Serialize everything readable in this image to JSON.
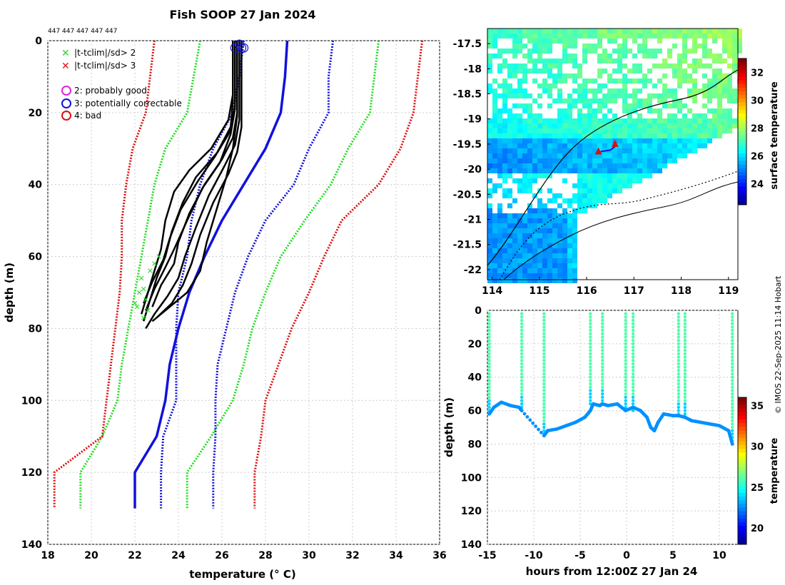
{
  "title": "Fish SOOP 27 Jan 2024",
  "id_labels": "447 447 447 447 447",
  "credit": "© IMOS 22-Sep-2025 11:14 Hobart",
  "colors": {
    "green": "#22dd22",
    "red": "#dd1111",
    "blue": "#1111dd",
    "magenta": "#dd22dd",
    "black": "#000000"
  },
  "chart_data": [
    {
      "type": "line",
      "title": "Fish SOOP 27 Jan 2024",
      "xlabel": "temperature (° C)",
      "ylabel": "depth (m)",
      "xlim": [
        18,
        36
      ],
      "ylim": [
        140,
        0
      ],
      "xticks": [
        "18",
        "20",
        "22",
        "24",
        "26",
        "28",
        "30",
        "32",
        "34",
        "36"
      ],
      "yticks": [
        "0",
        "20",
        "40",
        "60",
        "80",
        "100",
        "120",
        "140"
      ],
      "legend": [
        {
          "marker": "x",
          "color": "#22dd22",
          "label": "|t-tclim|/sd> 2"
        },
        {
          "marker": "x",
          "color": "#dd1111",
          "label": "|t-tclim|/sd> 3"
        },
        {
          "marker": "o",
          "color": "#dd22dd",
          "label": "2: probably good"
        },
        {
          "marker": "o",
          "color": "#1111dd",
          "label": "3: potentially correctable"
        },
        {
          "marker": "o",
          "color": "#dd1111",
          "label": "4: bad"
        }
      ],
      "climatology": [
        {
          "name": "mean",
          "color": "#1111dd",
          "dash": false,
          "points": [
            [
              29.0,
              0
            ],
            [
              28.9,
              10
            ],
            [
              28.7,
              20
            ],
            [
              28.0,
              30
            ],
            [
              27.0,
              40
            ],
            [
              26.0,
              50
            ],
            [
              25.2,
              60
            ],
            [
              24.5,
              70
            ],
            [
              24.0,
              80
            ],
            [
              23.6,
              90
            ],
            [
              23.4,
              100
            ],
            [
              23.0,
              110
            ],
            [
              22.0,
              120
            ],
            [
              22.0,
              130
            ]
          ]
        },
        {
          "name": "mean-1sd",
          "color": "#1111dd",
          "dash": true,
          "points": [
            [
              27.0,
              0
            ],
            [
              26.8,
              10
            ],
            [
              26.5,
              20
            ],
            [
              25.6,
              30
            ],
            [
              25.0,
              40
            ],
            [
              24.6,
              50
            ],
            [
              24.4,
              60
            ],
            [
              24.0,
              70
            ],
            [
              23.9,
              80
            ],
            [
              23.9,
              90
            ],
            [
              23.9,
              100
            ],
            [
              23.3,
              110
            ],
            [
              23.2,
              120
            ],
            [
              23.2,
              130
            ]
          ]
        },
        {
          "name": "mean+1sd",
          "color": "#1111dd",
          "dash": true,
          "points": [
            [
              31.1,
              0
            ],
            [
              30.9,
              10
            ],
            [
              30.9,
              20
            ],
            [
              30.0,
              30
            ],
            [
              29.3,
              40
            ],
            [
              28.0,
              50
            ],
            [
              27.2,
              60
            ],
            [
              26.6,
              70
            ],
            [
              26.2,
              80
            ],
            [
              25.8,
              90
            ],
            [
              25.7,
              100
            ],
            [
              25.7,
              110
            ],
            [
              25.6,
              120
            ],
            [
              25.6,
              130
            ]
          ]
        },
        {
          "name": "mean-2sd",
          "color": "#22dd22",
          "dash": true,
          "points": [
            [
              25.0,
              0
            ],
            [
              24.7,
              10
            ],
            [
              24.4,
              20
            ],
            [
              23.4,
              30
            ],
            [
              22.9,
              40
            ],
            [
              22.6,
              50
            ],
            [
              22.3,
              60
            ],
            [
              22.0,
              70
            ],
            [
              21.7,
              80
            ],
            [
              21.4,
              90
            ],
            [
              21.2,
              100
            ],
            [
              20.5,
              110
            ],
            [
              19.5,
              120
            ],
            [
              19.5,
              130
            ]
          ]
        },
        {
          "name": "mean+2sd",
          "color": "#22dd22",
          "dash": true,
          "points": [
            [
              33.2,
              0
            ],
            [
              33.0,
              10
            ],
            [
              32.8,
              20
            ],
            [
              31.8,
              30
            ],
            [
              31.0,
              40
            ],
            [
              29.8,
              50
            ],
            [
              28.7,
              60
            ],
            [
              28.0,
              70
            ],
            [
              27.4,
              80
            ],
            [
              27.0,
              90
            ],
            [
              26.5,
              100
            ],
            [
              25.5,
              110
            ],
            [
              24.4,
              120
            ],
            [
              24.4,
              130
            ]
          ]
        },
        {
          "name": "mean-3sd",
          "color": "#dd1111",
          "dash": true,
          "points": [
            [
              22.9,
              0
            ],
            [
              22.7,
              10
            ],
            [
              22.5,
              20
            ],
            [
              21.9,
              30
            ],
            [
              21.6,
              40
            ],
            [
              21.4,
              50
            ],
            [
              21.4,
              60
            ],
            [
              21.3,
              70
            ],
            [
              21.1,
              80
            ],
            [
              20.9,
              90
            ],
            [
              20.7,
              100
            ],
            [
              20.5,
              110
            ],
            [
              18.3,
              120
            ],
            [
              18.3,
              130
            ]
          ]
        },
        {
          "name": "mean+3sd",
          "color": "#dd1111",
          "dash": true,
          "points": [
            [
              35.2,
              0
            ],
            [
              35.0,
              10
            ],
            [
              34.8,
              20
            ],
            [
              34.2,
              30
            ],
            [
              33.2,
              40
            ],
            [
              31.5,
              50
            ],
            [
              30.7,
              60
            ],
            [
              30.0,
              70
            ],
            [
              29.2,
              80
            ],
            [
              28.6,
              90
            ],
            [
              28.0,
              100
            ],
            [
              27.8,
              110
            ],
            [
              27.5,
              120
            ],
            [
              27.5,
              130
            ]
          ]
        }
      ],
      "profiles": [
        [
          [
            26.5,
            0
          ],
          [
            26.5,
            15
          ],
          [
            26.3,
            22
          ],
          [
            25.5,
            30
          ],
          [
            24.5,
            36
          ],
          [
            23.8,
            42
          ],
          [
            23.4,
            50
          ],
          [
            23.2,
            58
          ],
          [
            22.9,
            64
          ],
          [
            22.6,
            70
          ],
          [
            22.3,
            76
          ]
        ],
        [
          [
            26.6,
            0
          ],
          [
            26.6,
            18
          ],
          [
            26.4,
            25
          ],
          [
            25.8,
            31
          ],
          [
            24.8,
            38
          ],
          [
            24.2,
            45
          ],
          [
            23.7,
            53
          ],
          [
            23.4,
            60
          ],
          [
            23.0,
            66
          ],
          [
            22.6,
            74
          ],
          [
            22.4,
            78
          ]
        ],
        [
          [
            26.7,
            0
          ],
          [
            26.7,
            20
          ],
          [
            26.5,
            27
          ],
          [
            26.0,
            33
          ],
          [
            25.2,
            40
          ],
          [
            24.5,
            48
          ],
          [
            24.0,
            56
          ],
          [
            23.8,
            62
          ],
          [
            23.2,
            68
          ],
          [
            22.8,
            74
          ]
        ],
        [
          [
            26.8,
            0
          ],
          [
            26.8,
            22
          ],
          [
            26.6,
            29
          ],
          [
            26.1,
            35
          ],
          [
            25.4,
            43
          ],
          [
            24.8,
            52
          ],
          [
            24.3,
            60
          ],
          [
            24.0,
            66
          ],
          [
            23.5,
            71
          ],
          [
            22.9,
            76
          ],
          [
            22.5,
            80
          ]
        ],
        [
          [
            26.9,
            0
          ],
          [
            26.9,
            24
          ],
          [
            26.7,
            31
          ],
          [
            26.3,
            37
          ],
          [
            25.6,
            45
          ],
          [
            25.0,
            54
          ],
          [
            24.6,
            62
          ],
          [
            24.2,
            68
          ],
          [
            23.7,
            73
          ],
          [
            23.0,
            77
          ]
        ],
        [
          [
            26.7,
            0
          ],
          [
            26.7,
            21
          ],
          [
            26.5,
            30
          ],
          [
            26.2,
            38
          ],
          [
            25.8,
            46
          ],
          [
            25.3,
            56
          ],
          [
            25.0,
            64
          ],
          [
            24.4,
            70
          ],
          [
            23.6,
            74
          ],
          [
            22.8,
            78
          ]
        ],
        [
          [
            26.6,
            0
          ],
          [
            26.6,
            19
          ],
          [
            26.4,
            26
          ],
          [
            25.9,
            34
          ],
          [
            25.1,
            41
          ],
          [
            24.4,
            50
          ],
          [
            23.8,
            58
          ],
          [
            23.4,
            63
          ],
          [
            22.9,
            69
          ],
          [
            22.5,
            75
          ]
        ],
        [
          [
            26.5,
            0
          ],
          [
            26.5,
            17
          ],
          [
            26.4,
            24
          ],
          [
            25.7,
            32
          ],
          [
            24.9,
            39
          ],
          [
            24.1,
            47
          ],
          [
            23.6,
            55
          ],
          [
            23.3,
            61
          ],
          [
            22.8,
            67
          ],
          [
            22.4,
            73
          ]
        ]
      ],
      "flag_markers": [
        [
          22.3,
          66
        ],
        [
          22.2,
          70
        ],
        [
          22.5,
          72
        ],
        [
          22.1,
          74
        ],
        [
          22.6,
          75
        ],
        [
          22.4,
          77
        ],
        [
          22.9,
          62
        ],
        [
          23.1,
          60
        ],
        [
          22.7,
          64
        ],
        [
          22.4,
          69
        ],
        [
          22.0,
          73
        ]
      ],
      "surface_circles": [
        [
          26.6,
          2
        ],
        [
          26.8,
          1
        ],
        [
          26.9,
          2
        ],
        [
          27.0,
          2
        ]
      ]
    },
    {
      "type": "heatmap",
      "subtype": "map",
      "xticks": [
        "114",
        "115",
        "116",
        "117",
        "118",
        "119"
      ],
      "yticks": [
        "-17.5",
        "-18",
        "-18.5",
        "-19",
        "-19.5",
        "-20",
        "-20.5",
        "-21",
        "-21.5",
        "-22"
      ],
      "xlim": [
        113.9,
        119.2
      ],
      "ylim": [
        -22.2,
        -17.2
      ],
      "colorbar_label": "surface temperature",
      "colorbar_ticks": [
        "24",
        "26",
        "28",
        "30",
        "32"
      ],
      "colorbar_range": [
        22.5,
        33
      ],
      "track": [
        [
          116.3,
          -19.65
        ],
        [
          116.5,
          -19.62
        ],
        [
          116.6,
          -19.55
        ]
      ],
      "markers": [
        {
          "lon": 116.25,
          "lat": -19.65,
          "color": "#dd1111"
        },
        {
          "lon": 116.6,
          "lat": -19.5,
          "color": "#dd1111"
        }
      ]
    },
    {
      "type": "scatter",
      "xlabel": "hours from 12:00Z 27 Jan 24",
      "ylabel": "depth (m)",
      "xlim": [
        -15,
        12
      ],
      "ylim": [
        140,
        0
      ],
      "xticks": [
        "-15",
        "-10",
        "-5",
        "0",
        "5",
        "10"
      ],
      "yticks": [
        "0",
        "20",
        "40",
        "60",
        "80",
        "100",
        "120",
        "140"
      ],
      "colorbar_label": "temperature",
      "colorbar_ticks": [
        "20",
        "25",
        "30",
        "35"
      ],
      "colorbar_range": [
        18,
        36
      ],
      "casts": [
        {
          "hour": -14.8,
          "bottom": 62
        },
        {
          "hour": -11.3,
          "bottom": 60
        },
        {
          "hour": -8.9,
          "bottom": 75
        },
        {
          "hour": -3.9,
          "bottom": 56
        },
        {
          "hour": -2.6,
          "bottom": 56
        },
        {
          "hour": -0.1,
          "bottom": 60
        },
        {
          "hour": 0.7,
          "bottom": 60
        },
        {
          "hour": 5.6,
          "bottom": 63
        },
        {
          "hour": 6.3,
          "bottom": 64
        },
        {
          "hour": 11.4,
          "bottom": 80
        }
      ],
      "bottom_trace": [
        [
          -14.8,
          62
        ],
        [
          -14.3,
          58
        ],
        [
          -13.5,
          55
        ],
        [
          -12.5,
          57
        ],
        [
          -11.6,
          58
        ],
        [
          -11.3,
          60
        ],
        [
          -8.9,
          75
        ],
        [
          -8.5,
          72
        ],
        [
          -7.5,
          71
        ],
        [
          -6.5,
          69
        ],
        [
          -5.5,
          67
        ],
        [
          -4.5,
          64
        ],
        [
          -3.9,
          60
        ],
        [
          -3.6,
          56
        ],
        [
          -2.9,
          57
        ],
        [
          -2.6,
          56
        ],
        [
          -2.0,
          57
        ],
        [
          -1.0,
          56
        ],
        [
          -0.1,
          60
        ],
        [
          0.7,
          58
        ],
        [
          1.5,
          60
        ],
        [
          2.2,
          64
        ],
        [
          2.6,
          70
        ],
        [
          3.0,
          72
        ],
        [
          3.4,
          67
        ],
        [
          4.0,
          62
        ],
        [
          5.0,
          63
        ],
        [
          5.6,
          63
        ],
        [
          6.3,
          64
        ],
        [
          7.0,
          66
        ],
        [
          8.0,
          67
        ],
        [
          9.0,
          68
        ],
        [
          10.0,
          69
        ],
        [
          11.0,
          72
        ],
        [
          11.4,
          80
        ]
      ]
    }
  ]
}
